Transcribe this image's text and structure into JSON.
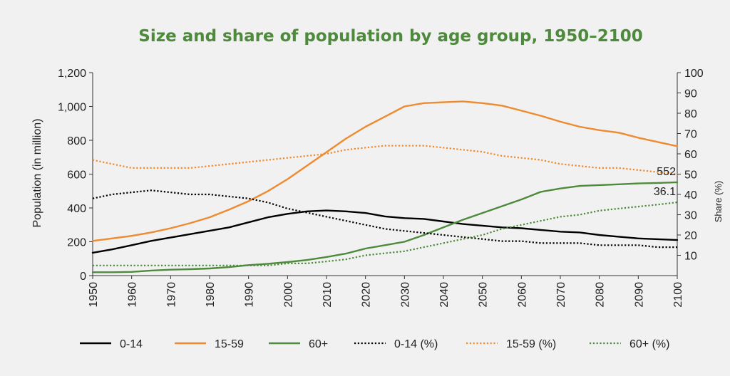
{
  "chart_data": {
    "type": "line",
    "title": "Size and share of population by age group, 1950–2100",
    "xlabel": "",
    "ylabel": "Population (in million)",
    "y2label": "Share (%)",
    "x": [
      1950,
      1955,
      1960,
      1965,
      1970,
      1975,
      1980,
      1985,
      1990,
      1995,
      2000,
      2005,
      2010,
      2015,
      2020,
      2025,
      2030,
      2035,
      2040,
      2045,
      2050,
      2055,
      2060,
      2065,
      2070,
      2075,
      2080,
      2085,
      2090,
      2095,
      2100
    ],
    "xticks": [
      "1950",
      "1960",
      "1970",
      "1980",
      "1990",
      "2000",
      "2010",
      "2020",
      "2030",
      "2040",
      "2050",
      "2060",
      "2070",
      "2080",
      "2090",
      "2100"
    ],
    "xlim": [
      1950,
      2100
    ],
    "ylim": [
      0,
      1200
    ],
    "yticks": [
      "0",
      "200",
      "400",
      "600",
      "800",
      "1,000",
      "1,200"
    ],
    "y2lim": [
      0,
      100
    ],
    "y2ticks": [
      "10",
      "20",
      "30",
      "40",
      "50",
      "60",
      "70",
      "80",
      "90",
      "100"
    ],
    "series": [
      {
        "name": "0-14",
        "axis": "left",
        "style": "solid",
        "color": "#000000",
        "values": [
          135,
          155,
          180,
          205,
          225,
          245,
          265,
          285,
          315,
          345,
          365,
          380,
          385,
          380,
          370,
          350,
          340,
          335,
          320,
          305,
          295,
          285,
          280,
          270,
          260,
          255,
          240,
          230,
          220,
          215,
          210
        ]
      },
      {
        "name": "15-59",
        "axis": "left",
        "style": "solid",
        "color": "#ee8a2f",
        "values": [
          205,
          220,
          235,
          255,
          280,
          310,
          345,
          390,
          440,
          500,
          570,
          650,
          730,
          810,
          880,
          940,
          1000,
          1020,
          1025,
          1030,
          1020,
          1005,
          975,
          945,
          910,
          880,
          860,
          845,
          815,
          790,
          765
        ]
      },
      {
        "name": "60+",
        "axis": "left",
        "style": "solid",
        "color": "#4d8a3b",
        "values": [
          20,
          20,
          22,
          30,
          35,
          38,
          42,
          50,
          62,
          70,
          80,
          92,
          110,
          130,
          160,
          180,
          200,
          240,
          285,
          330,
          370,
          410,
          450,
          495,
          515,
          530,
          535,
          540,
          545,
          548,
          552
        ]
      },
      {
        "name": "0-14 (%)",
        "axis": "right",
        "style": "dotted",
        "color": "#000000",
        "values": [
          38,
          40,
          41,
          42,
          41,
          40,
          40,
          39,
          38,
          36,
          33,
          31,
          29,
          27,
          25,
          23,
          22,
          21,
          20,
          19,
          18,
          17,
          17,
          16,
          16,
          16,
          15,
          15,
          15,
          14,
          14
        ]
      },
      {
        "name": "15-59 (%)",
        "axis": "right",
        "style": "dotted",
        "color": "#ee8a2f",
        "values": [
          57,
          55,
          53,
          53,
          53,
          53,
          54,
          55,
          56,
          57,
          58,
          59,
          60,
          62,
          63,
          64,
          64,
          64,
          63,
          62,
          61,
          59,
          58,
          57,
          55,
          54,
          53,
          53,
          52,
          51,
          50
        ]
      },
      {
        "name": "60+ (%)",
        "axis": "right",
        "style": "dotted",
        "color": "#4d8a3b",
        "values": [
          5,
          5,
          5,
          5,
          5,
          5,
          5,
          5,
          5,
          5,
          6,
          6,
          7,
          8,
          10,
          11,
          12,
          14,
          16,
          18,
          20,
          23,
          25,
          27,
          29,
          30,
          32,
          33,
          34,
          35,
          36.1
        ]
      }
    ],
    "annotations": [
      {
        "text": "552",
        "series": "60+",
        "x": 2100,
        "y": 552
      },
      {
        "text": "36.1",
        "series": "60+ (%)",
        "x": 2100,
        "y": 36.1
      }
    ],
    "legend_position": "bottom",
    "grid": false
  }
}
